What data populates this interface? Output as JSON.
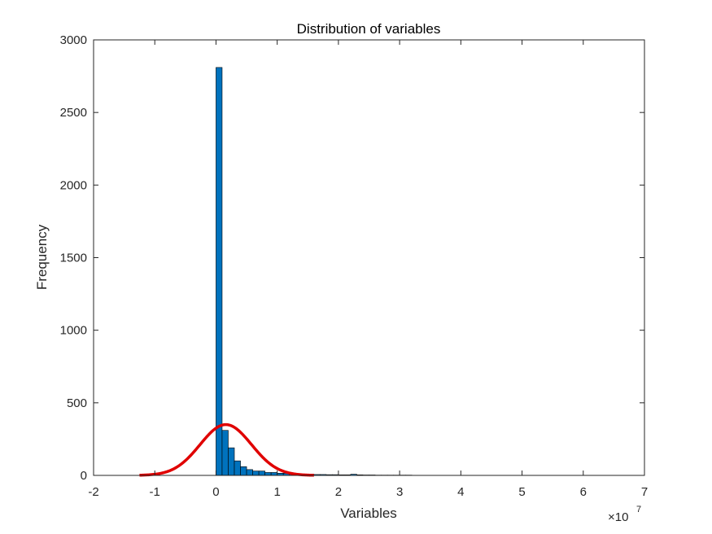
{
  "chart_data": {
    "type": "bar",
    "title": "Distribution of variables",
    "xlabel": "Variables",
    "ylabel": "Frequency",
    "x_exponent_base": "×10",
    "x_exponent_power": "7",
    "xlim": [
      -2,
      7
    ],
    "ylim": [
      0,
      3000
    ],
    "x_scale": 10000000,
    "xticks": [
      -2,
      -1,
      0,
      1,
      2,
      3,
      4,
      5,
      6,
      7
    ],
    "yticks": [
      0,
      500,
      1000,
      1500,
      2000,
      2500,
      3000
    ],
    "grid": false,
    "bin_start": 0,
    "bin_width": 0.1,
    "bin_counts": [
      2810,
      310,
      190,
      100,
      60,
      40,
      30,
      30,
      20,
      20,
      15,
      15,
      10,
      10,
      8,
      8,
      6,
      6,
      5,
      5,
      4,
      4,
      8,
      4,
      3,
      3,
      2,
      2,
      2,
      2,
      2,
      2,
      1,
      1,
      1,
      1,
      1,
      1,
      1,
      1,
      1,
      1,
      1,
      1,
      1,
      1,
      1,
      1,
      1,
      1,
      1,
      1,
      1,
      1,
      1,
      1,
      1,
      1,
      1,
      1,
      1,
      1,
      1,
      1,
      1,
      1,
      1,
      1,
      1,
      1
    ],
    "fit_curve": {
      "name": "normal fit",
      "mean": 0.16,
      "std": 0.42,
      "peak": 350,
      "x_range": [
        -1.25,
        1.6
      ]
    },
    "colors": {
      "bar_fill": "#0072BD",
      "bar_edge": "#000000",
      "fit_line": "#E00000",
      "axis": "#262626"
    }
  }
}
